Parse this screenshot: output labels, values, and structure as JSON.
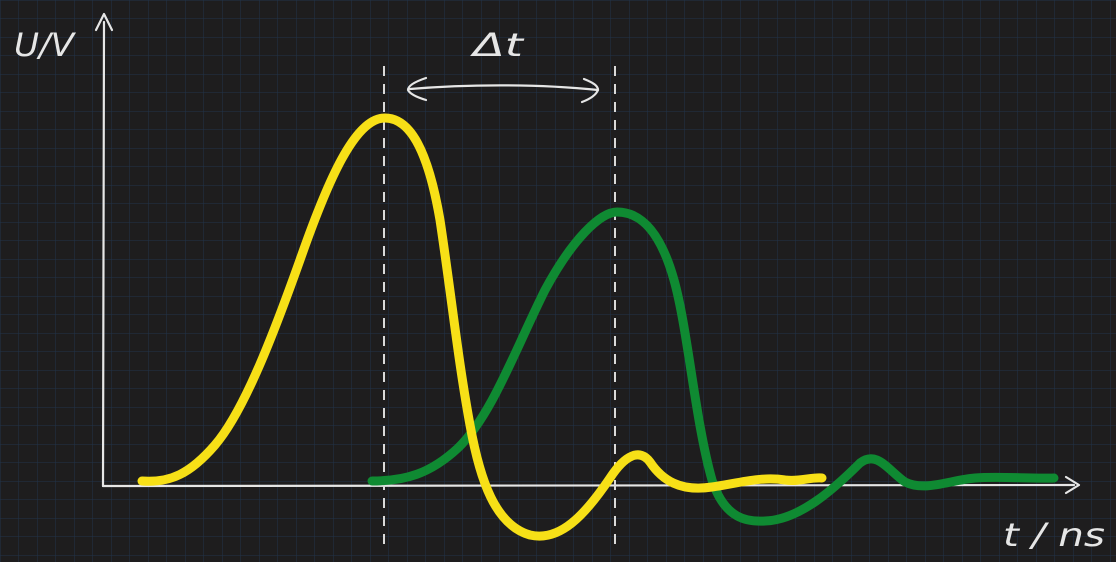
{
  "diagram": {
    "y_axis_label": "U/V",
    "x_axis_label": "t / ns",
    "delta_label": "Δt",
    "colors": {
      "background": "#1e1d1e",
      "grid": "#21344a",
      "axis": "#e6e6e6",
      "yellow_pulse": "#f7e017",
      "green_pulse": "#0f8a32",
      "guide": "#d9d9d9"
    }
  }
}
